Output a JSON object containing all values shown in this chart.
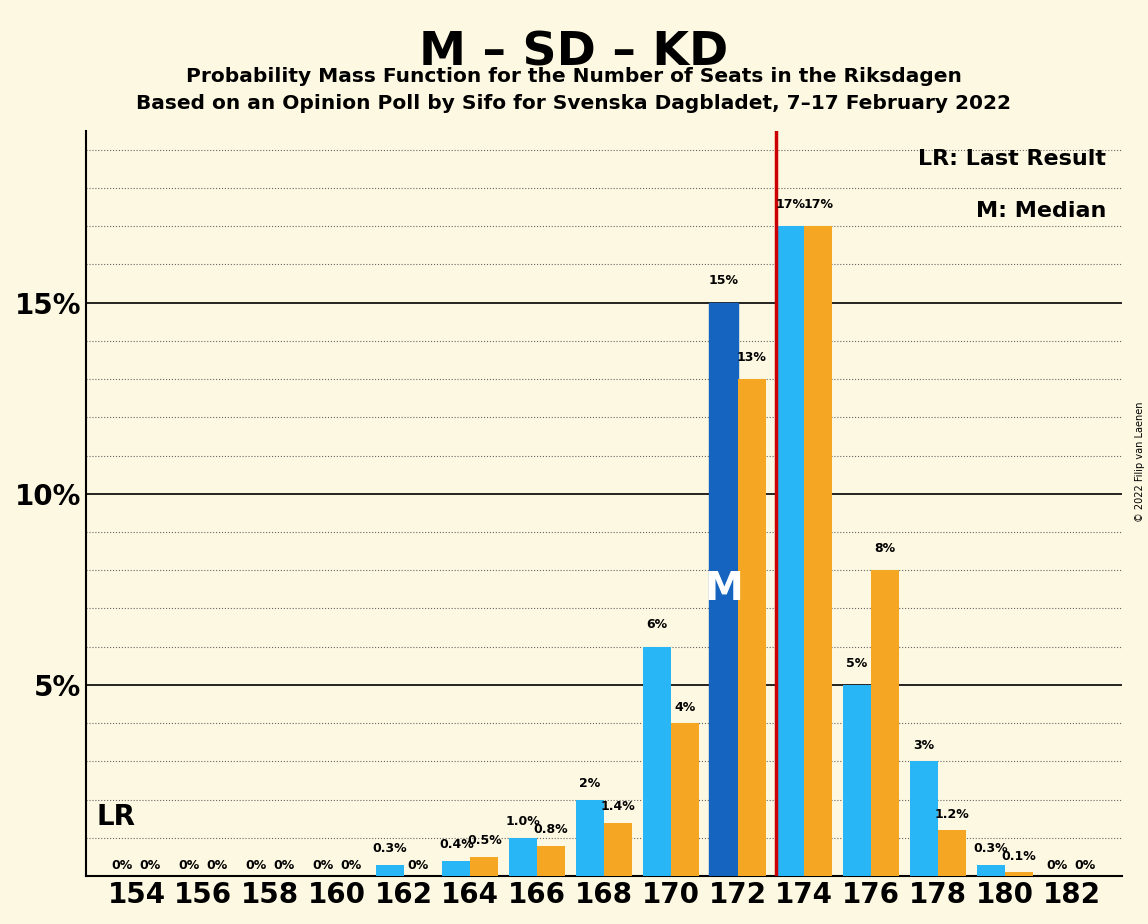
{
  "title": "M – SD – KD",
  "subtitle1": "Probability Mass Function for the Number of Seats in the Riksdagen",
  "subtitle2": "Based on an Opinion Poll by Sifo for Svenska Dagbladet, 7–17 February 2022",
  "copyright": "© 2022 Filip van Laenen",
  "seats": [
    154,
    156,
    158,
    160,
    162,
    164,
    166,
    168,
    170,
    172,
    174,
    176,
    178,
    180,
    182
  ],
  "pmf_current": [
    0.0,
    0.0,
    0.0,
    0.0,
    0.3,
    0.4,
    1.0,
    2.0,
    6.0,
    15.0,
    17.0,
    5.0,
    3.0,
    0.3,
    0.0
  ],
  "pmf_last": [
    0.0,
    0.0,
    0.0,
    0.0,
    0.0,
    0.5,
    0.8,
    1.4,
    4.0,
    13.0,
    17.0,
    8.0,
    1.2,
    0.1,
    0.0
  ],
  "pmf_current_labels": [
    "0%",
    "0%",
    "0%",
    "0%",
    "0.3%",
    "0.4%",
    "1.0%",
    "2%",
    "6%",
    "15%",
    "17%",
    "5%",
    "3%",
    "0.3%",
    "0%"
  ],
  "pmf_last_labels": [
    "0%",
    "0%",
    "0%",
    "0%",
    "0%",
    "0.5%",
    "0.8%",
    "1.4%",
    "4%",
    "13%",
    "17%",
    "8%",
    "1.2%",
    "0.1%",
    "0%"
  ],
  "last_result_seat": 174,
  "median_seat": 172,
  "color_current": "#29b6f6",
  "color_last": "#f5a623",
  "color_median_bar": "#1565c0",
  "color_lr_line": "#cc0000",
  "bg_color": "#fdf8e1",
  "ylim_max": 19.5,
  "yticks": [
    5,
    10,
    15
  ],
  "ytick_labels": [
    "5%",
    "10%",
    "15%"
  ]
}
